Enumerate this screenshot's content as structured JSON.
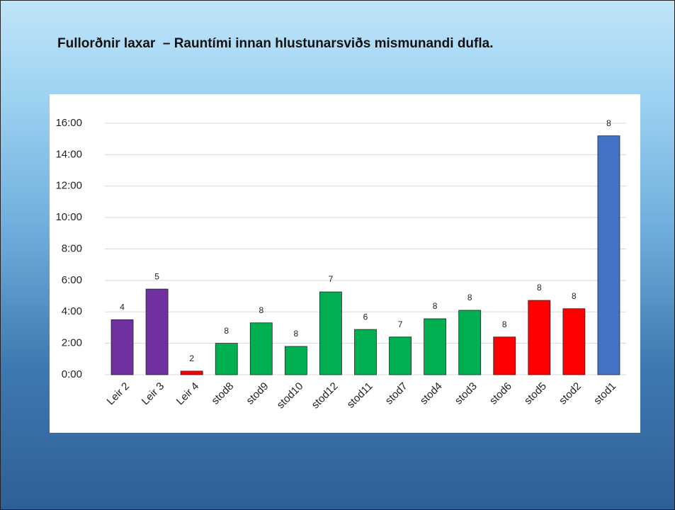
{
  "header": {
    "title": "Fullorðnir laxar  – Rauntími innan hlustunarsviðs mismunandi dufla."
  },
  "chart_data": {
    "type": "bar",
    "categories": [
      "Leir 2",
      "Leir 3",
      "Leir 4",
      "stod8",
      "stod9",
      "stod10",
      "stod12",
      "stod11",
      "stod7",
      "stod4",
      "stod3",
      "stod6",
      "stod5",
      "stod2",
      "stod1"
    ],
    "values": [
      3.5,
      5.45,
      0.23,
      2.0,
      3.3,
      1.8,
      5.27,
      2.88,
      2.4,
      3.56,
      4.1,
      2.4,
      4.73,
      4.2,
      15.2
    ],
    "counts": [
      4,
      5,
      2,
      8,
      8,
      8,
      7,
      6,
      7,
      8,
      8,
      8,
      8,
      8,
      8
    ],
    "colors": [
      "#7030a0",
      "#7030a0",
      "#ff0000",
      "#00b050",
      "#00b050",
      "#00b050",
      "#00b050",
      "#00b050",
      "#00b050",
      "#00b050",
      "#00b050",
      "#ff0000",
      "#ff0000",
      "#ff0000",
      "#4472c4"
    ],
    "ylim": [
      0,
      16
    ],
    "yticks": [
      {
        "value": 0,
        "label": "0:00"
      },
      {
        "value": 2,
        "label": "2:00"
      },
      {
        "value": 4,
        "label": "4:00"
      },
      {
        "value": 6,
        "label": "6:00"
      },
      {
        "value": 8,
        "label": "8:00"
      },
      {
        "value": 10,
        "label": "10:00"
      },
      {
        "value": 12,
        "label": "12:00"
      },
      {
        "value": 14,
        "label": "14:00"
      },
      {
        "value": 16,
        "label": "16:00"
      }
    ],
    "grid": true
  }
}
